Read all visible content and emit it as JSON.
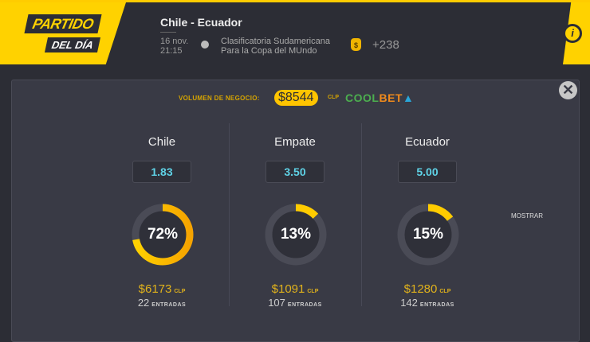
{
  "header": {
    "badge_line1": "PARTIDO",
    "badge_line2": "DEL DÍA",
    "match_title": "Chile - Ecuador",
    "date": "16 nov.",
    "time": "21:15",
    "competition_line1": "Clasificatoria Sudamericana",
    "competition_line2": "Para la Copa del MUndo",
    "bets_count": "+238",
    "info_label": "i"
  },
  "volume": {
    "label": "VOLUMEN DE NEGOCIO:",
    "amount": "$8544",
    "currency": "CLP",
    "brand": "COOLBET"
  },
  "close_label": "✕",
  "outcomes": [
    {
      "name": "Chile",
      "odds": "1.83",
      "percent": 72,
      "percent_label": "72%",
      "amount": "$6173",
      "currency": "CLP",
      "entries": "22",
      "entries_label": "ENTRADAS"
    },
    {
      "name": "Empate",
      "odds": "3.50",
      "percent": 13,
      "percent_label": "13%",
      "amount": "$1091",
      "currency": "CLP",
      "entries": "107",
      "entries_label": "ENTRADAS"
    },
    {
      "name": "Ecuador",
      "odds": "5.00",
      "percent": 15,
      "percent_label": "15%",
      "amount": "$1280",
      "currency": "CLP",
      "entries": "142",
      "entries_label": "ENTRADAS"
    }
  ],
  "show_more_label": "MOSTRAR",
  "colors": {
    "accent": "#ffd200",
    "odds": "#5fd2e6",
    "amount": "#e0b21c"
  }
}
